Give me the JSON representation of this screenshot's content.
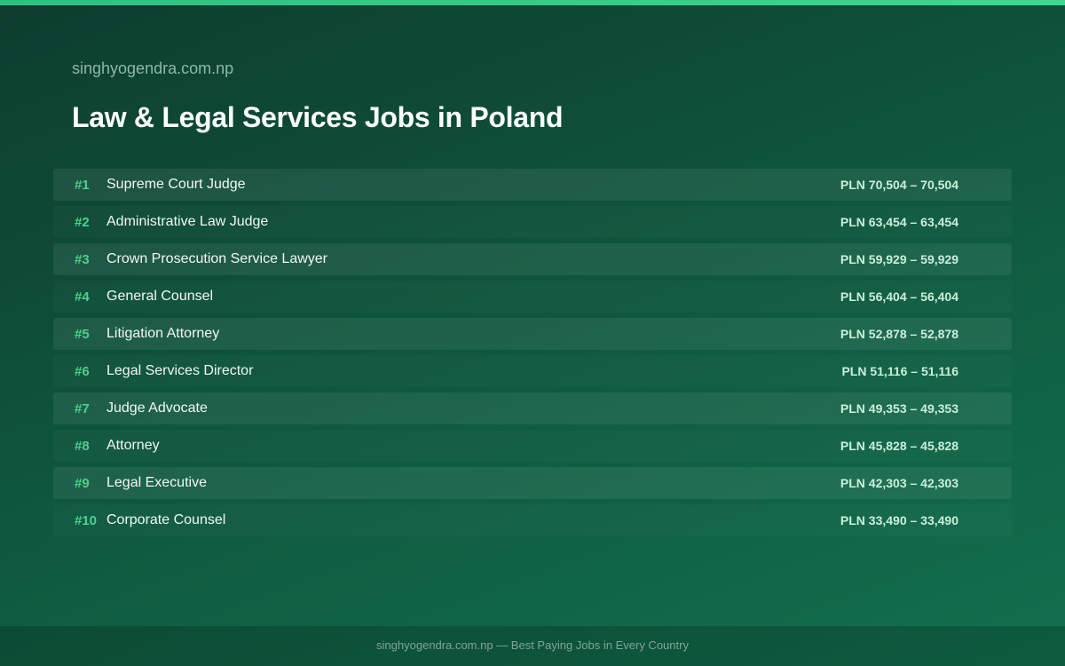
{
  "header": {
    "site": "singhyogendra.com.np",
    "title": "Law & Legal Services Jobs in Poland"
  },
  "table": {
    "rows": [
      [
        "#1",
        "Supreme Court Judge",
        "PLN 70,504 – 70,504"
      ],
      [
        "#2",
        "Administrative Law Judge",
        "PLN 63,454 – 63,454"
      ],
      [
        "#3",
        "Crown Prosecution Service Lawyer",
        "PLN 59,929 – 59,929"
      ],
      [
        "#4",
        "General Counsel",
        "PLN 56,404 – 56,404"
      ],
      [
        "#5",
        "Litigation Attorney",
        "PLN 52,878 – 52,878"
      ],
      [
        "#6",
        "Legal Services Director",
        "PLN 51,116 – 51,116"
      ],
      [
        "#7",
        "Judge Advocate",
        "PLN 49,353 – 49,353"
      ],
      [
        "#8",
        "Attorney",
        "PLN 45,828 – 45,828"
      ],
      [
        "#9",
        "Legal Executive",
        "PLN 42,303 – 42,303"
      ],
      [
        "#10",
        "Corporate Counsel",
        "PLN 33,490 – 33,490"
      ]
    ]
  },
  "footer": {
    "text": "singhyogendra.com.np — Best Paying Jobs in Every Country"
  }
}
